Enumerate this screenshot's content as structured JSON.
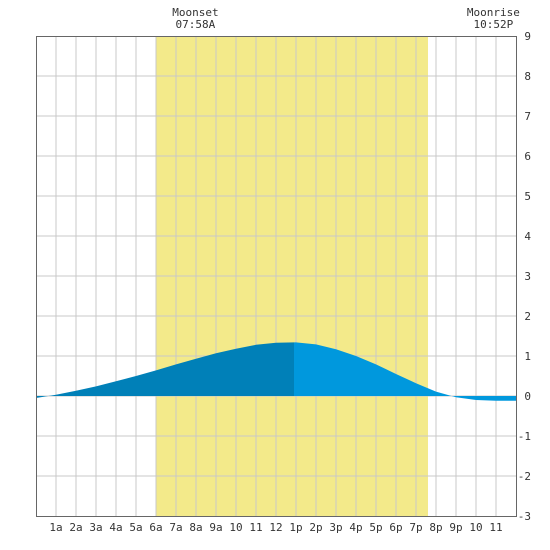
{
  "chart_data": {
    "type": "area",
    "annotations": [
      {
        "label": "Moonset",
        "time": "07:58A",
        "hour": 7.97
      },
      {
        "label": "Moonrise",
        "time": "10:52P",
        "hour": 22.87
      }
    ],
    "x_tick_labels": [
      "1a",
      "2a",
      "3a",
      "4a",
      "5a",
      "6a",
      "7a",
      "8a",
      "9a",
      "10",
      "11",
      "12",
      "1p",
      "2p",
      "3p",
      "4p",
      "5p",
      "6p",
      "7p",
      "8p",
      "9p",
      "10",
      "11"
    ],
    "y_tick_labels": [
      "-3",
      "-2",
      "-1",
      "0",
      "1",
      "2",
      "3",
      "4",
      "5",
      "6",
      "7",
      "8",
      "9"
    ],
    "xlim": [
      0,
      24
    ],
    "ylim": [
      -3,
      9
    ],
    "grid": true,
    "daylight_span": [
      6.0,
      19.6
    ],
    "series": [
      {
        "x": [
          0,
          1,
          2,
          3,
          4,
          5,
          6,
          7,
          8,
          9,
          10,
          11,
          12,
          12.9,
          13,
          14,
          15,
          16,
          17,
          18,
          19,
          20,
          21,
          22,
          23,
          24
        ],
        "y": [
          -0.05,
          0.03,
          0.13,
          0.24,
          0.37,
          0.5,
          0.64,
          0.79,
          0.93,
          1.07,
          1.18,
          1.28,
          1.33,
          1.34,
          1.34,
          1.29,
          1.17,
          1.0,
          0.79,
          0.55,
          0.32,
          0.11,
          -0.03,
          -0.1,
          -0.12,
          -0.12
        ],
        "split_hour": 12.9,
        "color_before": "#0080b8",
        "color_after": "#0098dd"
      }
    ],
    "colors": {
      "daylight": "#f3ea8a",
      "grid": "#c8c8c8",
      "border": "#666666",
      "text": "#333333"
    }
  }
}
